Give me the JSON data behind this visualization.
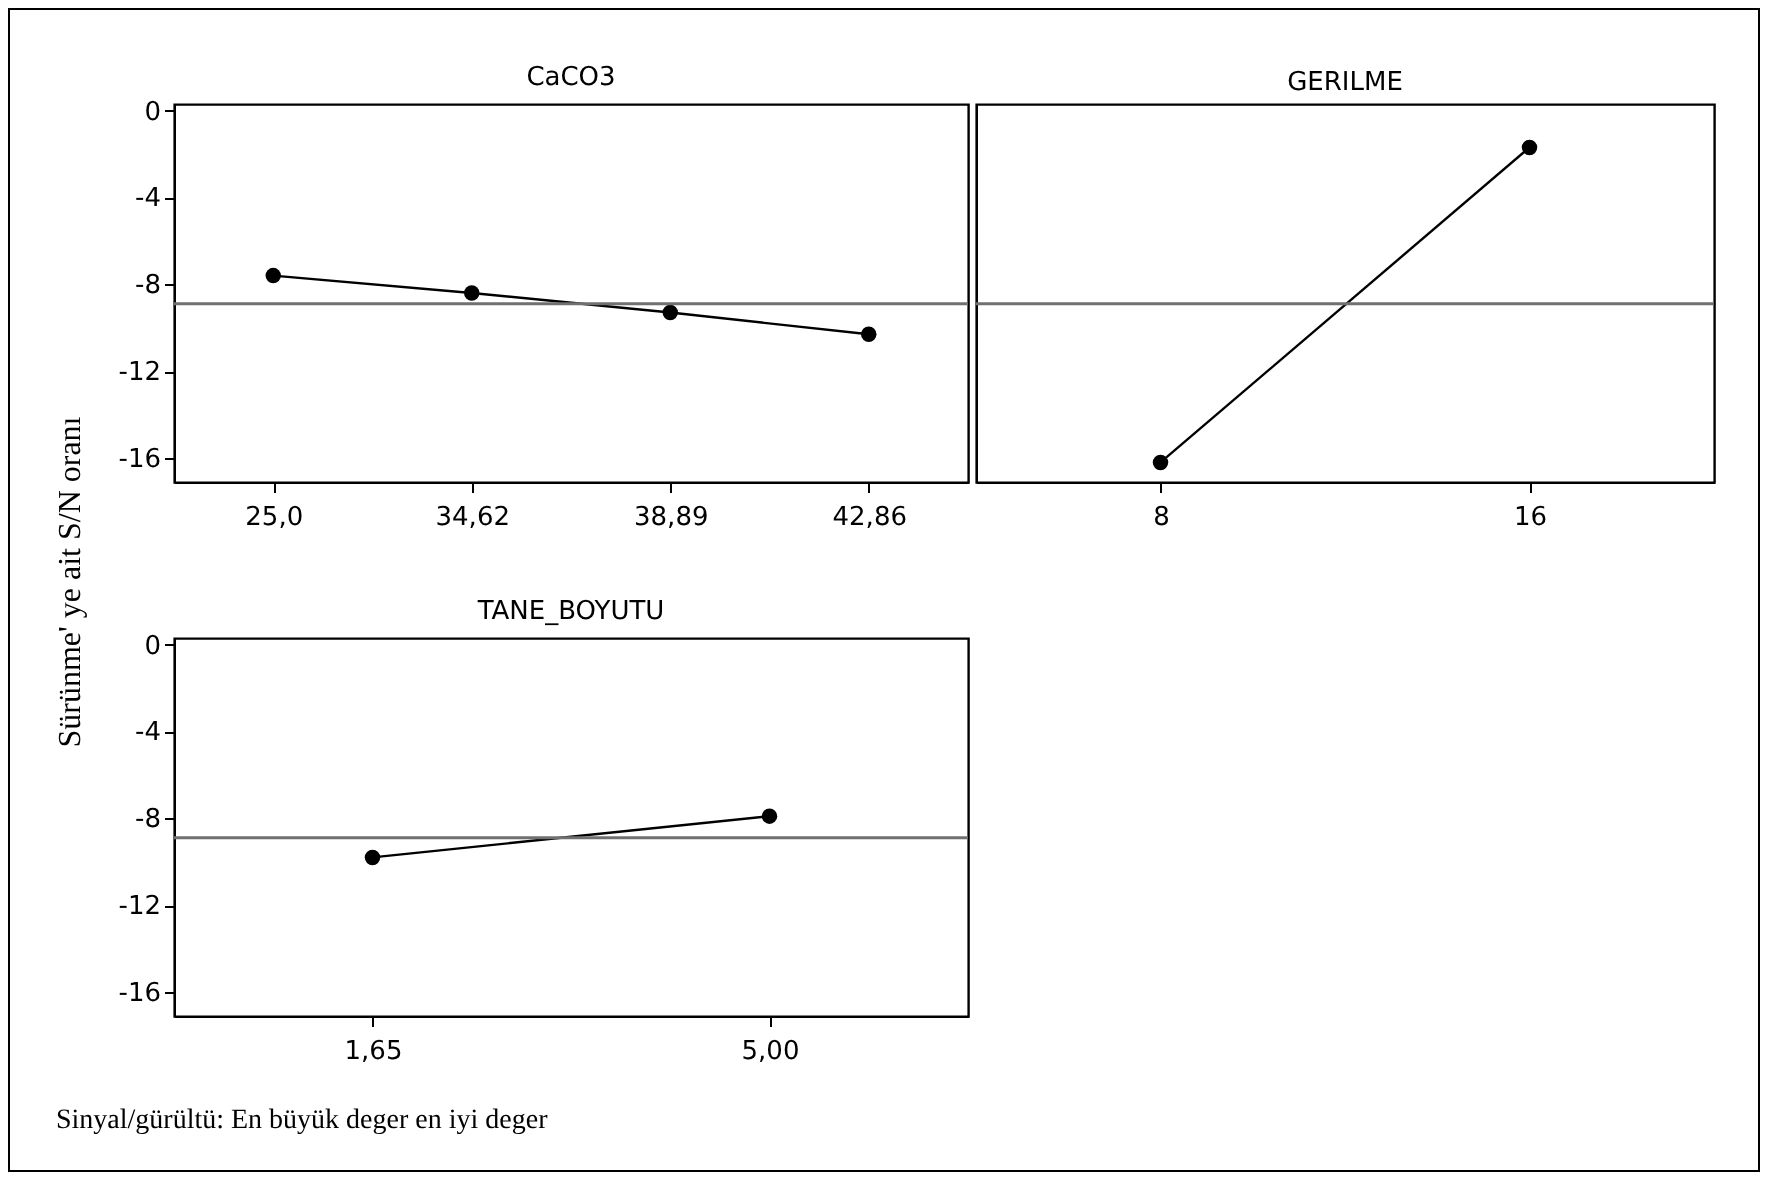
{
  "chart_data": [
    {
      "type": "line",
      "title": "CaCO3",
      "ylabel": "Sürünme' ye ait S/N oranı",
      "categories": [
        "25,0",
        "34,62",
        "38,89",
        "42,86"
      ],
      "series": [
        {
          "color": "#000000",
          "values": [
            -7.6,
            -8.4,
            -9.3,
            -10.3
          ]
        }
      ],
      "ylim": [
        -17.1,
        0.3
      ],
      "yticks": [
        -16,
        -12,
        -8,
        -4,
        0
      ],
      "ref_lines": [
        {
          "axis": "y",
          "value": -8.9,
          "color": "#707070"
        }
      ],
      "marker": "circle"
    },
    {
      "type": "line",
      "title": "GERILME",
      "categories": [
        "8",
        "16"
      ],
      "series": [
        {
          "color": "#000000",
          "values": [
            -16.2,
            -1.7
          ]
        }
      ],
      "ylim": [
        -17.1,
        0.3
      ],
      "yticks": [
        -16,
        -12,
        -8,
        -4,
        0
      ],
      "ref_lines": [
        {
          "axis": "y",
          "value": -8.9,
          "color": "#707070"
        }
      ],
      "marker": "circle",
      "tick_labels": "x"
    },
    {
      "type": "line",
      "title": "TANE_BOYUTU",
      "categories": [
        "1,65",
        "5,00"
      ],
      "series": [
        {
          "color": "#000000",
          "values": [
            -9.8,
            -7.9
          ]
        }
      ],
      "ylim": [
        -17.1,
        0.3
      ],
      "yticks": [
        -16,
        -12,
        -8,
        -4,
        0
      ],
      "ref_lines": [
        {
          "axis": "y",
          "value": -8.9,
          "color": "#707070"
        }
      ],
      "marker": "circle",
      "annotations": [
        "Sinyal/gürültü: En büyük deger en iyi deger"
      ]
    }
  ]
}
